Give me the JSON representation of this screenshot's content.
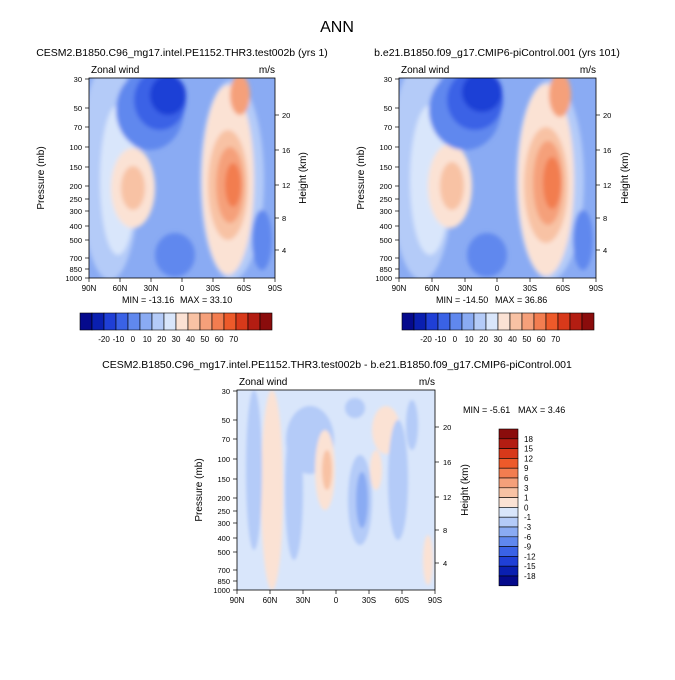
{
  "main_title": "ANN",
  "palette": {
    "blues": [
      "#050a8c",
      "#0a1fb0",
      "#1f3fd6",
      "#3a62e6",
      "#6088ee",
      "#8aabf3",
      "#b4cbf8",
      "#d9e6fb"
    ],
    "reds": [
      "#fbe2d4",
      "#f8c2a4",
      "#f5a07a",
      "#f27d50",
      "#ed5a2a",
      "#d8391a",
      "#b31d12",
      "#8a0c0c"
    ]
  },
  "chart_data": [
    {
      "type": "contour",
      "title": "CESM2.B1850.C96_mg17.intel.PE1152.THR3.test002b (yrs 1)",
      "variable_label": "Zonal wind",
      "units": "m/s",
      "ylabel": "Pressure (mb)",
      "y2label": "Height (km)",
      "x_ticks": [
        "90N",
        "60N",
        "30N",
        "0",
        "30S",
        "60S",
        "90S"
      ],
      "y_ticks": [
        "30",
        "50",
        "70",
        "100",
        "150",
        "200",
        "250",
        "300",
        "400",
        "500",
        "700",
        "850",
        "1000"
      ],
      "height_ticks": [
        "20",
        "16",
        "12",
        "8",
        "4"
      ],
      "min_label": "MIN = -13.16",
      "max_label": "MAX =  33.10",
      "colorbar_labels": [
        "-20",
        "-10",
        "0",
        "10",
        "20",
        "30",
        "40",
        "50",
        "60",
        "70"
      ]
    },
    {
      "type": "contour",
      "title": "b.e21.B1850.f09_g17.CMIP6-piControl.001 (yrs 101)",
      "variable_label": "Zonal wind",
      "units": "m/s",
      "ylabel": "Pressure (mb)",
      "y2label": "Height (km)",
      "x_ticks": [
        "90N",
        "60N",
        "30N",
        "0",
        "30S",
        "60S",
        "90S"
      ],
      "y_ticks": [
        "30",
        "50",
        "70",
        "100",
        "150",
        "200",
        "250",
        "300",
        "400",
        "500",
        "700",
        "850",
        "1000"
      ],
      "height_ticks": [
        "20",
        "16",
        "12",
        "8",
        "4"
      ],
      "min_label": "MIN = -14.50",
      "max_label": "MAX =  36.86",
      "colorbar_labels": [
        "-20",
        "-10",
        "0",
        "10",
        "20",
        "30",
        "40",
        "50",
        "60",
        "70"
      ]
    },
    {
      "type": "contour",
      "title": "CESM2.B1850.C96_mg17.intel.PE1152.THR3.test002b - b.e21.B1850.f09_g17.CMIP6-piControl.001",
      "variable_label": "Zonal wind",
      "units": "m/s",
      "ylabel": "Pressure (mb)",
      "y2label": "Height (km)",
      "x_ticks": [
        "90N",
        "60N",
        "30N",
        "0",
        "30S",
        "60S",
        "90S"
      ],
      "y_ticks": [
        "30",
        "50",
        "70",
        "100",
        "150",
        "200",
        "250",
        "300",
        "400",
        "500",
        "700",
        "850",
        "1000"
      ],
      "height_ticks": [
        "20",
        "16",
        "12",
        "8",
        "4"
      ],
      "min_label": "MIN = -5.61",
      "max_label": "MAX =   3.46",
      "colorbar_labels": [
        "18",
        "15",
        "12",
        "9",
        "6",
        "3",
        "1",
        "0",
        "-1",
        "-3",
        "-6",
        "-9",
        "-12",
        "-15",
        "-18"
      ]
    }
  ]
}
